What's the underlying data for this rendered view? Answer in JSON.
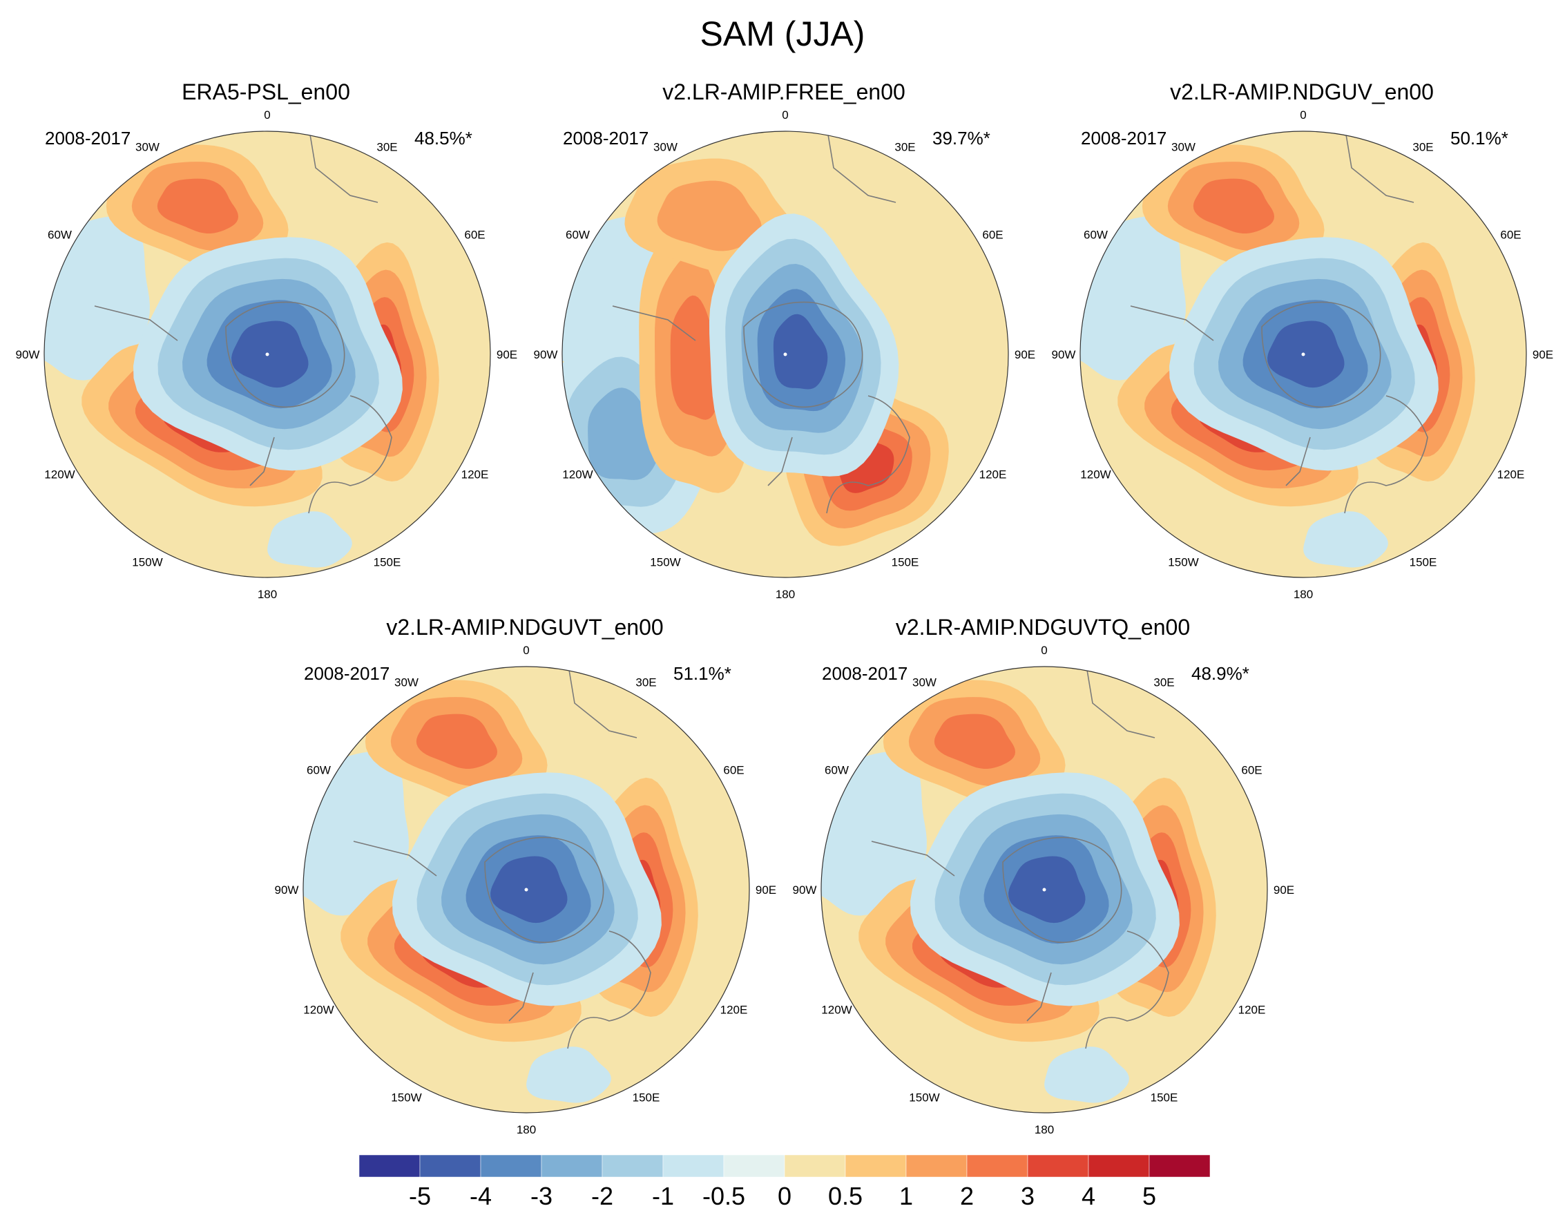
{
  "title": "SAM (JJA)",
  "colors": {
    "levels": [
      "#313695",
      "#4160ac",
      "#598ac2",
      "#7fb0d5",
      "#a5cee3",
      "#c9e6f0",
      "#e4f2f0",
      "#f6e4ab",
      "#fcc77a",
      "#f9a05d",
      "#f37748",
      "#e14634",
      "#cc2727",
      "#a60a2d"
    ],
    "coast": "#7a7a7a",
    "ring": "#333333"
  },
  "longitude_labels": [
    "0",
    "30E",
    "60E",
    "90E",
    "120E",
    "150E",
    "180",
    "150W",
    "120W",
    "90W",
    "60W",
    "30W"
  ],
  "panels": [
    {
      "title": "ERA5-PSL_en00",
      "period": "2008-2017",
      "variance": "48.5%*",
      "pattern": {
        "low_min": -4.6,
        "high1": 3.6,
        "high2": 3.3,
        "high3": 2.5,
        "shift": 0
      }
    },
    {
      "title": "v2.LR-AMIP.FREE_en00",
      "period": "2008-2017",
      "variance": "39.7%*",
      "pattern": {
        "low_min": -4.2,
        "high1": 2.8,
        "high2": 3.9,
        "high3": 1.6,
        "shift": 1
      }
    },
    {
      "title": "v2.LR-AMIP.NDGUV_en00",
      "period": "2008-2017",
      "variance": "50.1%*",
      "pattern": {
        "low_min": -4.8,
        "high1": 3.4,
        "high2": 3.2,
        "high3": 2.2,
        "shift": 0
      }
    },
    {
      "title": "v2.LR-AMIP.NDGUVT_en00",
      "period": "2008-2017",
      "variance": "51.1%*",
      "pattern": {
        "low_min": -4.9,
        "high1": 3.3,
        "high2": 3.3,
        "high3": 2.0,
        "shift": 0
      }
    },
    {
      "title": "v2.LR-AMIP.NDGUVTQ_en00",
      "period": "2008-2017",
      "variance": "48.9%*",
      "pattern": {
        "low_min": -4.9,
        "high1": 3.4,
        "high2": 3.5,
        "high3": 2.0,
        "shift": 0
      }
    }
  ],
  "colorbar": {
    "ticks": [
      "-5",
      "-4",
      "-3",
      "-2",
      "-1",
      "-0.5",
      "0",
      "0.5",
      "1",
      "2",
      "3",
      "4",
      "5"
    ]
  }
}
